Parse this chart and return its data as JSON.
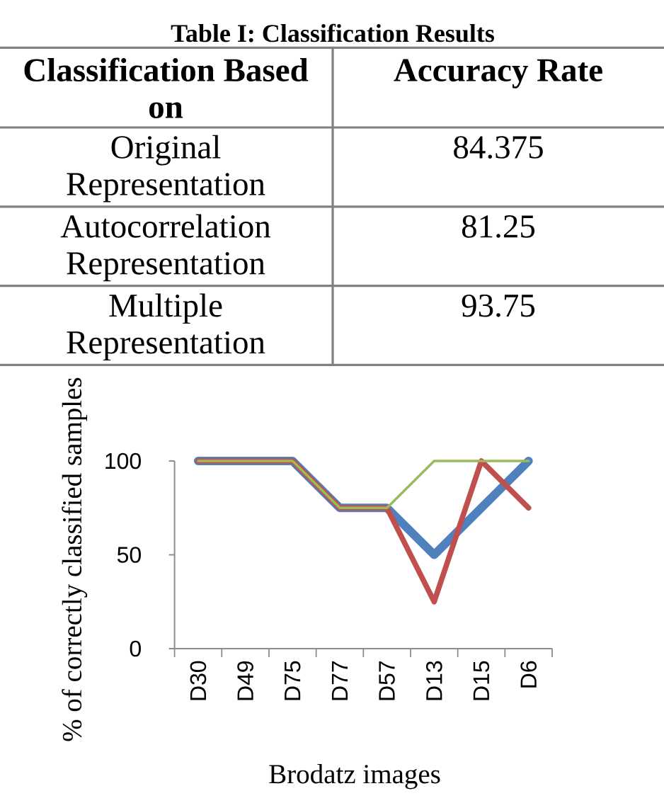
{
  "chart_data": [
    {
      "type": "other",
      "title": "Table I: Classification Results",
      "xlabel": "Classification Based on",
      "ylabel": "Accuracy Rate",
      "categories": [
        "Original Representation",
        "Autocorrelation Representation",
        "Multiple Representation"
      ],
      "values": [
        84.375,
        81.25,
        93.75
      ],
      "data_labels": true
    },
    {
      "type": "line",
      "xlabel": "Brodatz images",
      "ylabel": "% of correctly classified samples",
      "categories": [
        "D30",
        "D49",
        "D75",
        "D77",
        "D57",
        "D13",
        "D15",
        "D6"
      ],
      "series": [
        {
          "color": "#4f81bd",
          "values": [
            100,
            100,
            100,
            75,
            75,
            50,
            75,
            100
          ]
        },
        {
          "color": "#c0504d",
          "values": [
            100,
            100,
            100,
            75,
            75,
            25,
            100,
            75
          ]
        },
        {
          "color": "#9bbb59",
          "values": [
            100,
            100,
            100,
            75,
            75,
            100,
            100,
            100
          ]
        }
      ],
      "ylim": [
        0,
        100
      ],
      "yticks": [
        0,
        50,
        100
      ]
    }
  ]
}
